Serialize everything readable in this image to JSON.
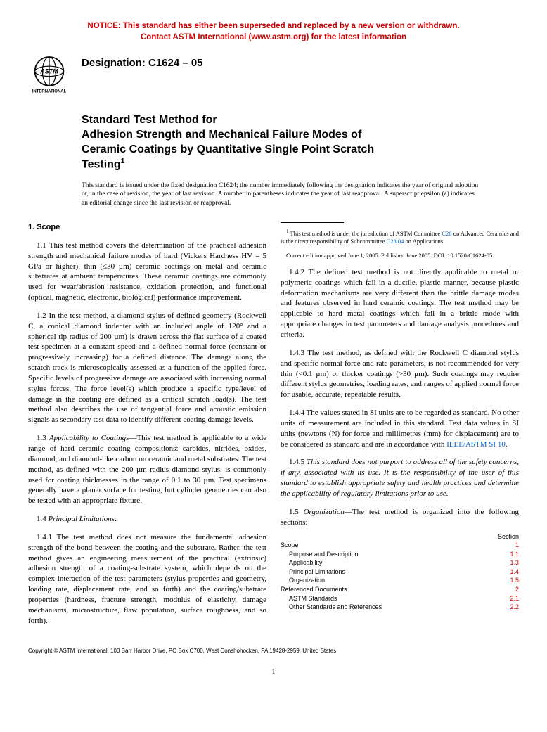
{
  "notice": {
    "line1": "NOTICE: This standard has either been superseded and replaced by a new version or withdrawn.",
    "line2": "Contact ASTM International (www.astm.org) for the latest information",
    "color": "#cc0000"
  },
  "logo": {
    "top_text": "ASTM",
    "bottom_text": "INTERNATIONAL"
  },
  "designation": "Designation: C1624 – 05",
  "title": {
    "line1": "Standard Test Method for",
    "line2": "Adhesion Strength and Mechanical Failure Modes of",
    "line3": "Ceramic Coatings by Quantitative Single Point Scratch",
    "line4": "Testing",
    "superscript": "1"
  },
  "issuance": "This standard is issued under the fixed designation C1624; the number immediately following the designation indicates the year of original adoption or, in the case of revision, the year of last revision. A number in parentheses indicates the year of last reapproval. A superscript epsilon (ε) indicates an editorial change since the last revision or reapproval.",
  "section1_head": "1. Scope",
  "p11": "1.1 This test method covers the determination of the practical adhesion strength and mechanical failure modes of hard (Vickers Hardness HV = 5 GPa or higher), thin (≤30 µm) ceramic coatings on metal and ceramic substrates at ambient temperatures. These ceramic coatings are commonly used for wear/abrasion resistance, oxidation protection, and functional (optical, magnetic, electronic, biological) performance improvement.",
  "p12": "1.2 In the test method, a diamond stylus of defined geometry (Rockwell C, a conical diamond indenter with an included angle of 120° and a spherical tip radius of 200 µm) is drawn across the flat surface of a coated test specimen at a constant speed and a defined normal force (constant or progressively increasing) for a defined distance. The damage along the scratch track is microscopically assessed as a function of the applied force. Specific levels of progressive damage are associated with increasing normal stylus forces. The force level(s) which produce a specific type/level of damage in the coating are defined as a critical scratch load(s). The test method also describes the use of tangential force and acoustic emission signals as secondary test data to identify different coating damage levels.",
  "p13_label": "1.3 ",
  "p13_head": "Applicability to Coatings",
  "p13_body": "—This test method is applicable to a wide range of hard ceramic coating compositions: carbides, nitrides, oxides, diamond, and diamond-like carbon on ceramic and metal substrates. The test method, as defined with the 200 µm radius diamond stylus, is commonly used for coating thicknesses in the range of 0.1 to 30 µm. Test specimens generally have a planar surface for testing, but cylinder geometries can also be tested with an appropriate fixture.",
  "p14_label": "1.4 ",
  "p14_head": "Principal Limitations",
  "p14_tail": ":",
  "p141": "1.4.1 The test method does not measure the fundamental adhesion strength of the bond between the coating and the substrate. Rather, the test method gives an engineering measurement of the practical (extrinsic) adhesion strength of a coating-substrate system, which depends on the complex interaction of the test parameters (stylus properties and geometry, loading rate, displacement rate, and so forth) and the coating/substrate properties (hardness, fracture strength, modulus of elasticity, damage mechanisms, microstructure, flaw population, surface roughness, and so forth).",
  "p142": "1.4.2 The defined test method is not directly applicable to metal or polymeric coatings which fail in a ductile, plastic manner, because plastic deformation mechanisms are very different than the brittle damage modes and features observed in hard ceramic coatings. The test method may be applicable to hard metal coatings which fail in a brittle mode with appropriate changes in test parameters and damage analysis procedures and criteria.",
  "p143": "1.4.3 The test method, as defined with the Rockwell C diamond stylus and specific normal force and rate parameters, is not recommended for very thin (<0.1 µm) or thicker coatings (>30 µm). Such coatings may require different stylus geometries, loading rates, and ranges of applied normal force for usable, accurate, repeatable results.",
  "p144_a": "1.4.4 The values stated in SI units are to be regarded as standard. No other units of measurement are included in this standard. Test data values in SI units (newtons (N) for force and millimetres (mm) for displacement) are to be considered as standard and are in accordance with ",
  "p144_link": "IEEE/ASTM SI 10",
  "p144_b": ".",
  "p145_label": "1.4.5 ",
  "p145_body": "This standard does not purport to address all of the safety concerns, if any, associated with its use. It is the responsibility of the user of this standard to establish appropriate safety and health practices and determine the applicability of regulatory limitations prior to use.",
  "p15_label": "1.5 ",
  "p15_head": "Organization",
  "p15_body": "—The test method is organized into the following sections:",
  "toc_header": "Section",
  "toc": [
    {
      "label": "Scope",
      "sec": "1",
      "indent": 0
    },
    {
      "label": "Purpose and Description",
      "sec": "1.1",
      "indent": 1
    },
    {
      "label": "Applicability",
      "sec": "1.3",
      "indent": 1
    },
    {
      "label": "Principal Limitations",
      "sec": "1.4",
      "indent": 1
    },
    {
      "label": "Organization",
      "sec": "1.5",
      "indent": 1
    },
    {
      "label": "Referenced Documents",
      "sec": "2",
      "indent": 0
    },
    {
      "label": "ASTM Standards",
      "sec": "2.1",
      "indent": 1
    },
    {
      "label": "Other Standards and References",
      "sec": "2.2",
      "indent": 1
    }
  ],
  "footnote": {
    "sup": "1",
    "text_a": " This test method is under the jurisdiction of ASTM Committee ",
    "link1": "C28",
    "text_b": " on Advanced Ceramics and is the direct responsibility of Subcommittee ",
    "link2": "C28.04",
    "text_c": " on Applications.",
    "line2": "Current edition approved June 1, 2005. Published June 2005. DOI: 10.1520/C1624-05."
  },
  "copyright": "Copyright © ASTM International, 100 Barr Harbor Drive, PO Box C700, West Conshohocken, PA 19428-2959, United States.",
  "pagenum": "1",
  "colors": {
    "notice": "#cc0000",
    "link": "#0066cc",
    "toc_sec": "#cc0000",
    "text": "#000000",
    "background": "#ffffff"
  },
  "fonts": {
    "body_family": "Times New Roman",
    "heading_family": "Arial",
    "body_size_pt": 11,
    "title_size_pt": 16,
    "designation_size_pt": 15,
    "footnote_size_pt": 8.5,
    "toc_size_pt": 9
  }
}
